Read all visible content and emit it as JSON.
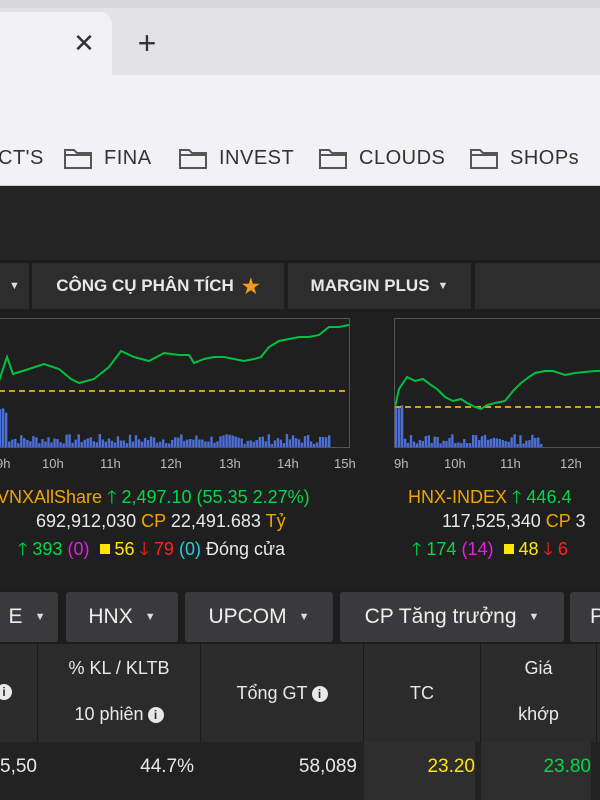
{
  "browser": {
    "bookmarks": [
      {
        "label": "CT'S"
      },
      {
        "label": "FINA"
      },
      {
        "label": "INVEST"
      },
      {
        "label": "CLOUDS"
      },
      {
        "label": "SHOPs"
      }
    ]
  },
  "menu": {
    "items": [
      {
        "label": ""
      },
      {
        "label": "CÔNG CỤ PHÂN TÍCH"
      },
      {
        "label": "MARGIN PLUS"
      }
    ]
  },
  "charts": [
    {
      "index_name": "VNXAllShare",
      "value": "2,497.10",
      "change": "(55.35 2.27%)",
      "volume": "692,912,030",
      "cp_label": "CP",
      "amount": "22,491.683",
      "unit": "Tỷ",
      "up": "393",
      "ref": "(0)",
      "flat": "56",
      "down": "79",
      "floor": "(0)",
      "status": "Đóng cửa",
      "ticks": [
        "9h",
        "10h",
        "11h",
        "12h",
        "13h",
        "14h",
        "15h"
      ]
    },
    {
      "index_name": "HNX-INDEX",
      "value": "446.4",
      "volume": "117,525,340",
      "cp_label": "CP",
      "amount": "3",
      "up": "174",
      "ref": "(14)",
      "flat": "48",
      "down": "6",
      "ticks": [
        "9h",
        "10h",
        "11h",
        "12h"
      ]
    }
  ],
  "tabs": [
    {
      "label": "E"
    },
    {
      "label": "HNX"
    },
    {
      "label": "UPCOM"
    },
    {
      "label": "CP Tăng trưởng"
    },
    {
      "label": "P"
    }
  ],
  "table": {
    "headers": {
      "kl_line1": "% KL / KLTB",
      "kl_line2": "10 phiên",
      "tong_gt": "Tổng GT",
      "tc": "TC",
      "gia_line1": "Giá",
      "gia_line2": "khớp"
    },
    "row": {
      "c0": "5,50",
      "kl_pct": "44.7%",
      "tong_gt": "58,089",
      "tc": "23.20",
      "gia": "23.80"
    }
  },
  "colors": {
    "index_name": "#f0a500",
    "up": "#00d84a",
    "ref": "#e020e0",
    "flat": "#ffe600",
    "down": "#ff2020",
    "floor": "#20d0e0",
    "chart_line": "#00c040",
    "ref_line": "#d4a017",
    "volume_bars": "#4a6fd8"
  }
}
